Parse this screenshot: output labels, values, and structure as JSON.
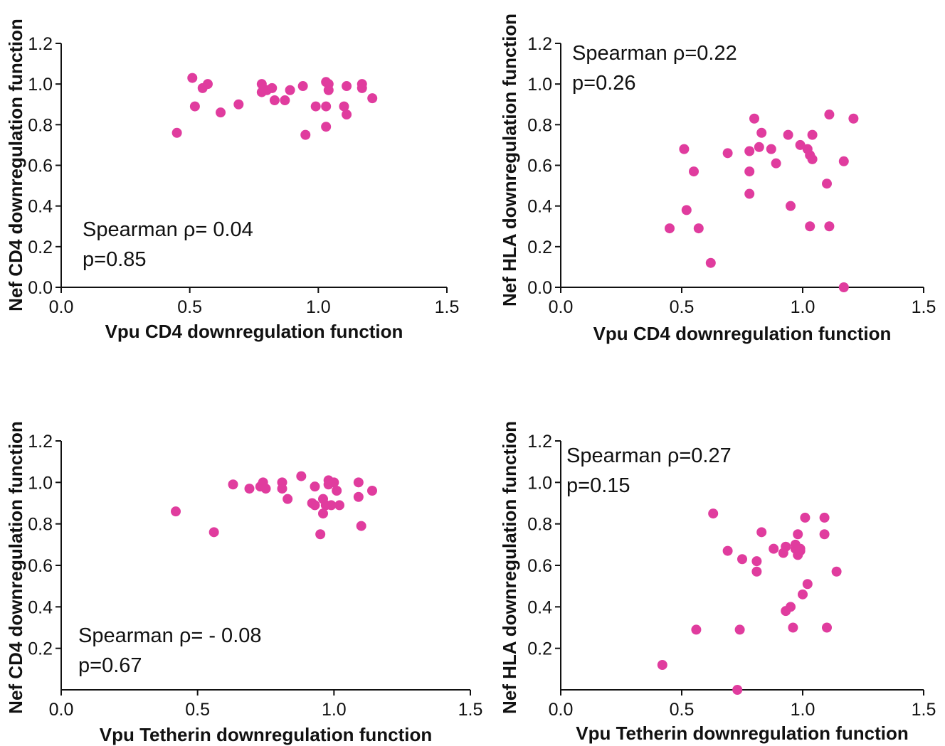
{
  "chart_data": [
    {
      "type": "scatter",
      "xlabel": "Vpu CD4 downregulation function",
      "ylabel": "Nef CD4 downregulation function",
      "xlim": [
        0,
        1.5
      ],
      "ylim": [
        0,
        1.2
      ],
      "xticks": [
        0,
        0.5,
        1.0,
        1.5
      ],
      "yticks": [
        0,
        0.2,
        0.4,
        0.6,
        0.8,
        1.0,
        1.2
      ],
      "xtick_labels": [
        "0.0",
        "0.5",
        "1.0",
        "1.5"
      ],
      "ytick_labels": [
        "0.0",
        "0.2",
        "0.4",
        "0.6",
        "0.8",
        "1.0",
        "1.2"
      ],
      "annotation": [
        "Spearman ρ= 0.04",
        "p=0.85"
      ],
      "annotation_position": "bottom-left",
      "marker_color": "#E03C9E",
      "points": [
        {
          "x": 0.45,
          "y": 0.76
        },
        {
          "x": 0.51,
          "y": 1.03
        },
        {
          "x": 0.52,
          "y": 0.89
        },
        {
          "x": 0.55,
          "y": 0.98
        },
        {
          "x": 0.57,
          "y": 1.0
        },
        {
          "x": 0.62,
          "y": 0.86
        },
        {
          "x": 0.69,
          "y": 0.9
        },
        {
          "x": 0.78,
          "y": 1.0
        },
        {
          "x": 0.78,
          "y": 0.96
        },
        {
          "x": 0.8,
          "y": 0.97
        },
        {
          "x": 0.82,
          "y": 0.98
        },
        {
          "x": 0.83,
          "y": 0.92
        },
        {
          "x": 0.87,
          "y": 0.92
        },
        {
          "x": 0.89,
          "y": 0.97
        },
        {
          "x": 0.94,
          "y": 0.99
        },
        {
          "x": 0.95,
          "y": 0.75
        },
        {
          "x": 0.99,
          "y": 0.89
        },
        {
          "x": 1.03,
          "y": 0.89
        },
        {
          "x": 1.03,
          "y": 1.01
        },
        {
          "x": 1.04,
          "y": 1.0
        },
        {
          "x": 1.04,
          "y": 0.97
        },
        {
          "x": 1.03,
          "y": 0.79
        },
        {
          "x": 1.11,
          "y": 0.99
        },
        {
          "x": 1.1,
          "y": 0.89
        },
        {
          "x": 1.11,
          "y": 0.85
        },
        {
          "x": 1.17,
          "y": 1.0
        },
        {
          "x": 1.17,
          "y": 0.98
        },
        {
          "x": 1.21,
          "y": 0.93
        }
      ]
    },
    {
      "type": "scatter",
      "xlabel": "Vpu CD4 downregulation function",
      "ylabel": "Nef HLA downregulation function",
      "xlim": [
        0,
        1.5
      ],
      "ylim": [
        0,
        1.2
      ],
      "xticks": [
        0,
        0.5,
        1.0,
        1.5
      ],
      "yticks": [
        0,
        0.2,
        0.4,
        0.6,
        0.8,
        1.0,
        1.2
      ],
      "xtick_labels": [
        "0.0",
        "0.5",
        "1.0",
        "1.5"
      ],
      "ytick_labels": [
        "0.0",
        "0.2",
        "0.4",
        "0.6",
        "0.8",
        "1.0",
        "1.2"
      ],
      "annotation": [
        "Spearman ρ=0.22",
        "p=0.26"
      ],
      "annotation_position": "top-left",
      "marker_color": "#E03C9E",
      "points": [
        {
          "x": 0.45,
          "y": 0.29
        },
        {
          "x": 0.51,
          "y": 0.68
        },
        {
          "x": 0.52,
          "y": 0.38
        },
        {
          "x": 0.55,
          "y": 0.57
        },
        {
          "x": 0.57,
          "y": 0.29
        },
        {
          "x": 0.62,
          "y": 0.12
        },
        {
          "x": 0.69,
          "y": 0.66
        },
        {
          "x": 0.78,
          "y": 0.67
        },
        {
          "x": 0.78,
          "y": 0.57
        },
        {
          "x": 0.78,
          "y": 0.46
        },
        {
          "x": 0.8,
          "y": 0.83
        },
        {
          "x": 0.82,
          "y": 0.69
        },
        {
          "x": 0.83,
          "y": 0.76
        },
        {
          "x": 0.87,
          "y": 0.68
        },
        {
          "x": 0.89,
          "y": 0.61
        },
        {
          "x": 0.94,
          "y": 0.75
        },
        {
          "x": 0.95,
          "y": 0.4
        },
        {
          "x": 0.99,
          "y": 0.7
        },
        {
          "x": 1.02,
          "y": 0.68
        },
        {
          "x": 1.03,
          "y": 0.65
        },
        {
          "x": 1.04,
          "y": 0.63
        },
        {
          "x": 1.04,
          "y": 0.75
        },
        {
          "x": 1.03,
          "y": 0.3
        },
        {
          "x": 1.1,
          "y": 0.51
        },
        {
          "x": 1.11,
          "y": 0.85
        },
        {
          "x": 1.11,
          "y": 0.3
        },
        {
          "x": 1.17,
          "y": 0.62
        },
        {
          "x": 1.17,
          "y": 0.0
        },
        {
          "x": 1.21,
          "y": 0.83
        }
      ]
    },
    {
      "type": "scatter",
      "xlabel": "Vpu Tetherin downregulation function",
      "ylabel": "Nef CD4 downregulation function",
      "xlim": [
        0,
        1.5
      ],
      "ylim": [
        0,
        1.2
      ],
      "xticks": [
        0,
        0.5,
        1.0,
        1.5
      ],
      "yticks": [
        0.2,
        0.4,
        0.6,
        0.8,
        1.0,
        1.2
      ],
      "xtick_labels": [
        "0.0",
        "0.5",
        "1.0",
        "1.5"
      ],
      "ytick_labels": [
        "0.2",
        "0.4",
        "0.6",
        "0.8",
        "1.0",
        "1.2"
      ],
      "annotation": [
        "Spearman ρ= - 0.08",
        "p=0.67"
      ],
      "annotation_position": "bottom-left",
      "marker_color": "#E03C9E",
      "points": [
        {
          "x": 0.42,
          "y": 0.86
        },
        {
          "x": 0.56,
          "y": 0.76
        },
        {
          "x": 0.63,
          "y": 0.99
        },
        {
          "x": 0.69,
          "y": 0.97
        },
        {
          "x": 0.73,
          "y": 0.98
        },
        {
          "x": 0.74,
          "y": 1.0
        },
        {
          "x": 0.75,
          "y": 0.97
        },
        {
          "x": 0.81,
          "y": 1.0
        },
        {
          "x": 0.81,
          "y": 0.97
        },
        {
          "x": 0.83,
          "y": 0.92
        },
        {
          "x": 0.88,
          "y": 1.03
        },
        {
          "x": 0.92,
          "y": 0.9
        },
        {
          "x": 0.93,
          "y": 0.98
        },
        {
          "x": 0.93,
          "y": 0.89
        },
        {
          "x": 0.95,
          "y": 0.75
        },
        {
          "x": 0.96,
          "y": 0.92
        },
        {
          "x": 0.96,
          "y": 0.85
        },
        {
          "x": 0.97,
          "y": 0.89
        },
        {
          "x": 0.98,
          "y": 1.01
        },
        {
          "x": 0.98,
          "y": 0.99
        },
        {
          "x": 0.99,
          "y": 0.89
        },
        {
          "x": 1.0,
          "y": 1.0
        },
        {
          "x": 1.01,
          "y": 0.96
        },
        {
          "x": 1.02,
          "y": 0.89
        },
        {
          "x": 1.09,
          "y": 1.0
        },
        {
          "x": 1.09,
          "y": 0.93
        },
        {
          "x": 1.1,
          "y": 0.79
        },
        {
          "x": 1.14,
          "y": 0.96
        }
      ]
    },
    {
      "type": "scatter",
      "xlabel": "Vpu Tetherin downregulation function",
      "ylabel": "Nef HLA downregulation function",
      "xlim": [
        0,
        1.5
      ],
      "ylim": [
        0,
        1.2
      ],
      "xticks": [
        0,
        0.5,
        1.0,
        1.5
      ],
      "yticks": [
        0.2,
        0.4,
        0.6,
        0.8,
        1.0,
        1.2
      ],
      "xtick_labels": [
        "0.0",
        "0.5",
        "1.0",
        "1.5"
      ],
      "ytick_labels": [
        "0.2",
        "0.4",
        "0.6",
        "0.8",
        "1.0",
        "1.2"
      ],
      "annotation": [
        "Spearman ρ=0.27",
        "p=0.15"
      ],
      "annotation_position": "top-left",
      "marker_color": "#E03C9E",
      "points": [
        {
          "x": 0.42,
          "y": 0.12
        },
        {
          "x": 0.56,
          "y": 0.29
        },
        {
          "x": 0.63,
          "y": 0.85
        },
        {
          "x": 0.69,
          "y": 0.67
        },
        {
          "x": 0.73,
          "y": 0.0
        },
        {
          "x": 0.74,
          "y": 0.29
        },
        {
          "x": 0.75,
          "y": 0.63
        },
        {
          "x": 0.81,
          "y": 0.62
        },
        {
          "x": 0.81,
          "y": 0.57
        },
        {
          "x": 0.83,
          "y": 0.76
        },
        {
          "x": 0.88,
          "y": 0.68
        },
        {
          "x": 0.92,
          "y": 0.66
        },
        {
          "x": 0.93,
          "y": 0.69
        },
        {
          "x": 0.93,
          "y": 0.38
        },
        {
          "x": 0.95,
          "y": 0.4
        },
        {
          "x": 0.96,
          "y": 0.3
        },
        {
          "x": 0.97,
          "y": 0.7
        },
        {
          "x": 0.97,
          "y": 0.68
        },
        {
          "x": 0.98,
          "y": 0.75
        },
        {
          "x": 0.98,
          "y": 0.65
        },
        {
          "x": 0.99,
          "y": 0.67
        },
        {
          "x": 0.99,
          "y": 0.68
        },
        {
          "x": 1.0,
          "y": 0.46
        },
        {
          "x": 1.01,
          "y": 0.83
        },
        {
          "x": 1.02,
          "y": 0.51
        },
        {
          "x": 1.09,
          "y": 0.83
        },
        {
          "x": 1.09,
          "y": 0.75
        },
        {
          "x": 1.1,
          "y": 0.3
        },
        {
          "x": 1.14,
          "y": 0.57
        }
      ]
    }
  ]
}
